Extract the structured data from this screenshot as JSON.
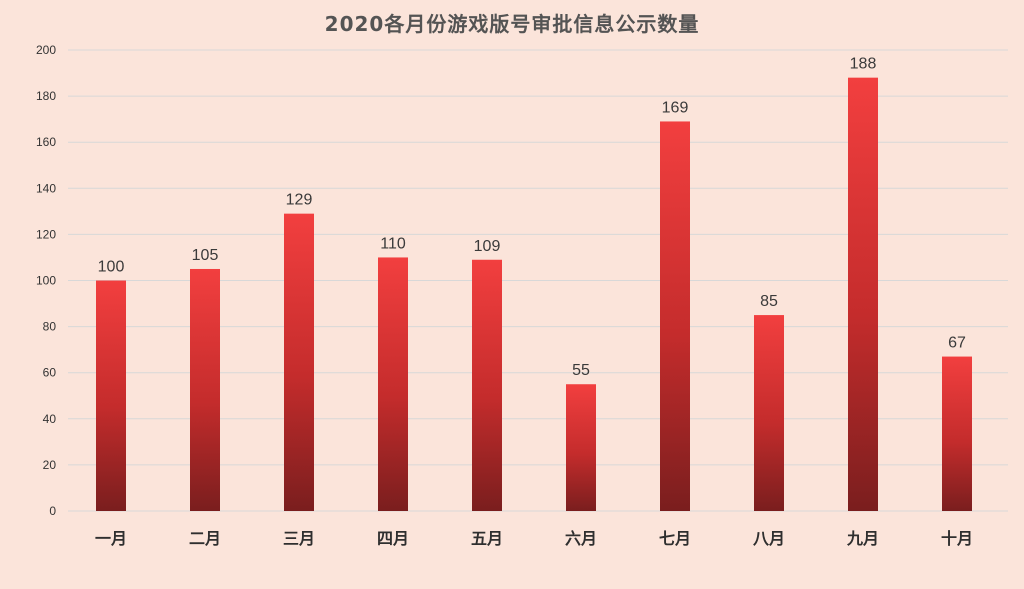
{
  "chart_data": {
    "type": "bar",
    "title": "2020各月份游戏版号审批信息公示数量",
    "categories": [
      "一月",
      "二月",
      "三月",
      "四月",
      "五月",
      "六月",
      "七月",
      "八月",
      "九月",
      "十月"
    ],
    "values": [
      100,
      105,
      129,
      110,
      109,
      55,
      169,
      85,
      188,
      67
    ],
    "ylim": [
      0,
      200
    ],
    "yticks": [
      0,
      20,
      40,
      60,
      80,
      100,
      120,
      140,
      160,
      180,
      200
    ],
    "grid": true,
    "legend": "none",
    "colors": {
      "background": "#fbe4da",
      "bar_top": "#f23f3f",
      "bar_bottom": "#7a1e1e",
      "grid": "#d8d8d8"
    }
  }
}
